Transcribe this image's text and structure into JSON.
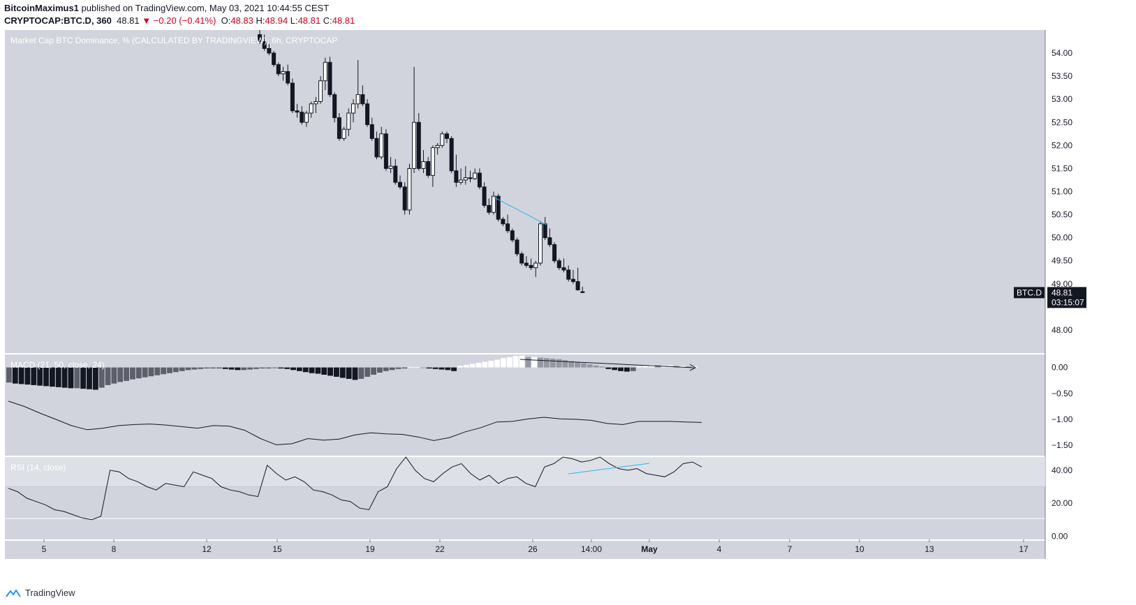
{
  "header": {
    "author": "BitcoinMaximus1",
    "published_text": "published on TradingView.com, May 03, 2021 10:44:55 CEST",
    "symbol": "CRYPTOCAP:BTC.D, 360",
    "last": "48.81",
    "change": "−0.20 (−0.41%)",
    "open": "48.83",
    "high": "48.94",
    "low": "48.81",
    "close": "48.81",
    "o_label": "O:",
    "h_label": "H:",
    "l_label": "L:",
    "c_label": "C:"
  },
  "chart_data": [
    {
      "type": "candlestick",
      "title": "Market Cap BTC Dominance, % (CALCULATED BY TRADINGVIEW), 6h, CRYPTOCAP",
      "ylim": [
        47.5,
        54.5
      ],
      "y_ticks": [
        "54.00",
        "53.50",
        "53.00",
        "52.50",
        "52.00",
        "51.50",
        "51.00",
        "50.50",
        "50.00",
        "49.50",
        "49.00",
        "48.00"
      ],
      "x_ticks": [
        "5",
        "8",
        "12",
        "15",
        "19",
        "22",
        "26",
        "14:00",
        "May",
        "4",
        "7",
        "10",
        "13",
        "17"
      ],
      "price_label": {
        "symbol": "BTC.D",
        "price": "48.81",
        "countdown": "03:15:07"
      },
      "candles": [
        [
          54.4,
          54.5,
          54.2,
          54.25
        ],
        [
          54.25,
          54.4,
          54.05,
          54.1
        ],
        [
          54.1,
          54.2,
          53.95,
          54.0
        ],
        [
          54.0,
          54.05,
          53.7,
          53.75
        ],
        [
          53.75,
          53.8,
          53.5,
          53.55
        ],
        [
          53.55,
          53.7,
          53.4,
          53.6
        ],
        [
          53.6,
          53.75,
          53.3,
          53.35
        ],
        [
          53.35,
          53.45,
          52.7,
          52.75
        ],
        [
          52.75,
          52.9,
          52.6,
          52.72
        ],
        [
          52.72,
          52.85,
          52.45,
          52.5
        ],
        [
          52.5,
          52.75,
          52.4,
          52.7
        ],
        [
          52.7,
          52.95,
          52.6,
          52.9
        ],
        [
          52.9,
          53.05,
          52.7,
          52.95
        ],
        [
          52.95,
          53.5,
          52.9,
          53.4
        ],
        [
          53.4,
          53.9,
          53.2,
          53.8
        ],
        [
          53.8,
          53.92,
          53.05,
          53.1
        ],
        [
          53.1,
          53.15,
          52.5,
          52.6
        ],
        [
          52.6,
          52.7,
          52.1,
          52.15
        ],
        [
          52.15,
          52.4,
          52.1,
          52.35
        ],
        [
          52.35,
          52.8,
          52.2,
          52.7
        ],
        [
          52.7,
          53.0,
          52.5,
          52.9
        ],
        [
          52.9,
          53.85,
          52.8,
          53.1
        ],
        [
          53.1,
          53.3,
          52.85,
          52.9
        ],
        [
          52.9,
          53.0,
          52.4,
          52.45
        ],
        [
          52.45,
          52.6,
          52.1,
          52.15
        ],
        [
          52.15,
          52.3,
          51.7,
          51.75
        ],
        [
          51.75,
          52.4,
          51.7,
          52.25
        ],
        [
          52.25,
          52.35,
          51.45,
          51.5
        ],
        [
          51.5,
          51.75,
          51.4,
          51.55
        ],
        [
          51.55,
          51.7,
          51.15,
          51.2
        ],
        [
          51.2,
          51.35,
          51.05,
          51.1
        ],
        [
          51.1,
          51.2,
          50.5,
          50.6
        ],
        [
          50.6,
          51.6,
          50.5,
          51.5
        ],
        [
          51.5,
          53.7,
          51.4,
          52.5
        ],
        [
          52.5,
          52.7,
          51.45,
          51.5
        ],
        [
          51.5,
          51.9,
          51.4,
          51.65
        ],
        [
          51.65,
          51.75,
          51.3,
          51.35
        ],
        [
          51.35,
          52.0,
          51.1,
          51.95
        ],
        [
          51.95,
          52.05,
          51.8,
          52.0
        ],
        [
          52.0,
          52.3,
          51.95,
          52.25
        ],
        [
          52.25,
          52.3,
          52.05,
          52.15
        ],
        [
          52.15,
          52.2,
          51.4,
          51.45
        ],
        [
          51.45,
          51.8,
          51.1,
          51.2
        ],
        [
          51.2,
          51.5,
          51.15,
          51.25
        ],
        [
          51.25,
          51.55,
          51.15,
          51.3
        ],
        [
          51.3,
          51.45,
          51.2,
          51.28
        ],
        [
          51.28,
          51.5,
          51.25,
          51.4
        ],
        [
          51.4,
          51.5,
          51.05,
          51.1
        ],
        [
          51.1,
          51.2,
          50.65,
          50.7
        ],
        [
          50.7,
          50.85,
          50.5,
          50.55
        ],
        [
          50.55,
          51.0,
          50.5,
          50.9
        ],
        [
          50.9,
          50.95,
          50.35,
          50.4
        ],
        [
          50.4,
          50.45,
          50.25,
          50.3
        ],
        [
          50.3,
          50.5,
          50.1,
          50.15
        ],
        [
          50.15,
          50.2,
          49.9,
          49.95
        ],
        [
          49.95,
          50.0,
          49.6,
          49.65
        ],
        [
          49.65,
          49.7,
          49.4,
          49.45
        ],
        [
          49.45,
          49.6,
          49.35,
          49.4
        ],
        [
          49.4,
          49.55,
          49.3,
          49.35
        ],
        [
          49.35,
          49.5,
          49.15,
          49.45
        ],
        [
          49.45,
          50.35,
          49.4,
          50.3
        ],
        [
          50.3,
          50.45,
          49.95,
          50.0
        ],
        [
          50.0,
          50.2,
          49.8,
          49.85
        ],
        [
          49.85,
          49.9,
          49.45,
          49.5
        ],
        [
          49.5,
          49.55,
          49.3,
          49.35
        ],
        [
          49.35,
          49.55,
          49.25,
          49.3
        ],
        [
          49.3,
          49.4,
          49.05,
          49.1
        ],
        [
          49.1,
          49.3,
          49.0,
          49.05
        ],
        [
          49.05,
          49.35,
          48.85,
          48.87
        ],
        [
          48.83,
          48.94,
          48.81,
          48.81
        ]
      ]
    },
    {
      "type": "bar",
      "title": "MACD (21, 50, close, 24)",
      "ylim": [
        -1.7,
        0.25
      ],
      "y_ticks": [
        "0.00",
        "−0.50",
        "−1.00",
        "−1.50"
      ],
      "histogram": [
        -0.29,
        -0.31,
        -0.32,
        -0.33,
        -0.34,
        -0.35,
        -0.36,
        -0.37,
        -0.38,
        -0.39,
        -0.4,
        -0.4,
        -0.41,
        -0.42,
        -0.43,
        -0.39,
        -0.34,
        -0.31,
        -0.28,
        -0.26,
        -0.23,
        -0.21,
        -0.19,
        -0.17,
        -0.15,
        -0.13,
        -0.11,
        -0.09,
        -0.07,
        -0.05,
        -0.04,
        -0.03,
        -0.02,
        -0.02,
        -0.02,
        -0.03,
        -0.04,
        -0.05,
        -0.05,
        -0.04,
        -0.03,
        -0.02,
        -0.02,
        -0.01,
        -0.02,
        -0.03,
        -0.05,
        -0.07,
        -0.09,
        -0.11,
        -0.12,
        -0.14,
        -0.16,
        -0.18,
        -0.2,
        -0.22,
        -0.24,
        -0.22,
        -0.18,
        -0.14,
        -0.1,
        -0.07,
        -0.05,
        -0.03,
        -0.02,
        0.01,
        0.01,
        0.0,
        -0.02,
        -0.03,
        -0.04,
        -0.05,
        -0.07,
        0.03,
        0.05,
        0.07,
        0.09,
        0.11,
        0.13,
        0.15,
        0.18,
        0.2,
        0.22,
        0.23,
        0.2,
        0.2,
        0.19,
        0.18,
        0.17,
        0.16,
        0.14,
        0.12,
        0.1,
        0.08,
        0.06,
        0.04,
        0.02,
        -0.03,
        -0.05,
        -0.07,
        -0.08,
        -0.07,
        0.02,
        0.04,
        0.05,
        0.04,
        0.04,
        0.04,
        0.03,
        0.03,
        0.02,
        0.02
      ],
      "macd_line": [
        -0.65,
        -0.75,
        -0.88,
        -1.0,
        -1.12,
        -1.2,
        -1.17,
        -1.12,
        -1.1,
        -1.09,
        -1.11,
        -1.14,
        -1.17,
        -1.12,
        -1.13,
        -1.21,
        -1.37,
        -1.49,
        -1.47,
        -1.37,
        -1.4,
        -1.38,
        -1.3,
        -1.26,
        -1.28,
        -1.29,
        -1.34,
        -1.41,
        -1.35,
        -1.24,
        -1.16,
        -1.05,
        -1.04,
        -0.99,
        -0.96,
        -0.99,
        -1.0,
        -1.02,
        -1.08,
        -1.1,
        -1.04,
        -1.04,
        -1.04,
        -1.05,
        -1.06
      ]
    },
    {
      "type": "line",
      "title": "RSI (14, close)",
      "ylim": [
        -2,
        48
      ],
      "y_ticks": [
        "40.00",
        "20.00",
        "0.00"
      ],
      "x_index": [
        0,
        2,
        4,
        6,
        8,
        10,
        12,
        14,
        16,
        18,
        20,
        22,
        24,
        26,
        28,
        30,
        32,
        34,
        36,
        38,
        40,
        42,
        44,
        46,
        48,
        50,
        52,
        54,
        56,
        58,
        60,
        62,
        64,
        66,
        68,
        70,
        72,
        74,
        76,
        78,
        80,
        82,
        84,
        86,
        88,
        90,
        92,
        94,
        96,
        98,
        100,
        102,
        104,
        106,
        108,
        110,
        112,
        114,
        116,
        118,
        120,
        122,
        124,
        126,
        128,
        130,
        132,
        134,
        136,
        138,
        140,
        142,
        144,
        146,
        148,
        150
      ],
      "values": [
        29,
        27,
        23,
        21,
        19,
        16,
        15,
        13,
        11,
        10,
        12,
        40,
        39,
        35,
        33,
        30,
        28,
        32,
        31,
        30,
        39,
        37,
        35,
        30,
        28,
        27,
        25,
        24,
        43,
        38,
        34,
        36,
        33,
        28,
        27,
        25,
        22,
        21,
        17,
        16,
        27,
        30,
        41,
        48,
        40,
        35,
        33,
        38,
        42,
        44,
        38,
        34,
        37,
        32,
        35,
        36,
        32,
        30,
        42,
        44,
        49,
        47,
        45,
        46,
        49,
        44,
        41,
        40,
        41,
        38,
        37,
        36,
        39,
        44,
        45,
        42
      ]
    }
  ],
  "footer": {
    "brand": "TradingView"
  }
}
